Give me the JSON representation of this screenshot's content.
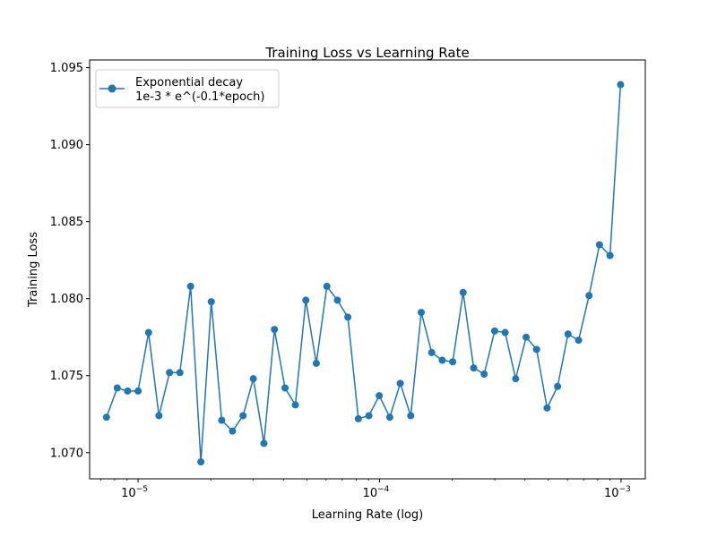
{
  "chart_data": {
    "type": "line",
    "title": "Training Loss vs Learning Rate",
    "xlabel": "Learning Rate (log)",
    "ylabel": "Training Loss",
    "x_scale": "log",
    "xlim": [
      6.3e-06,
      0.00126
    ],
    "ylim": [
      1.0683,
      1.0955
    ],
    "x_major_ticks": [
      {
        "value": 1e-05,
        "base": "10",
        "exp": "−5"
      },
      {
        "value": 0.0001,
        "base": "10",
        "exp": "−4"
      },
      {
        "value": 0.001,
        "base": "10",
        "exp": "−3"
      }
    ],
    "y_ticks": [
      {
        "value": 1.07,
        "label": "1.070"
      },
      {
        "value": 1.075,
        "label": "1.075"
      },
      {
        "value": 1.08,
        "label": "1.080"
      },
      {
        "value": 1.085,
        "label": "1.085"
      },
      {
        "value": 1.09,
        "label": "1.090"
      },
      {
        "value": 1.095,
        "label": "1.095"
      }
    ],
    "grid": false,
    "legend_position": "top-left",
    "series": [
      {
        "name": "Exponential decay\n1e-3 * e^(-0.1*epoch)",
        "color": "#1f77b4",
        "marker": "circle",
        "x": [
          7.4e-06,
          8.2e-06,
          9.05e-06,
          1e-05,
          1.105e-05,
          1.22e-05,
          1.35e-05,
          1.49e-05,
          1.65e-05,
          1.82e-05,
          2.01e-05,
          2.22e-05,
          2.46e-05,
          2.72e-05,
          3e-05,
          3.32e-05,
          3.67e-05,
          4.06e-05,
          4.48e-05,
          4.95e-05,
          5.47e-05,
          6.05e-05,
          6.69e-05,
          7.39e-05,
          8.17e-05,
          9.03e-05,
          9.97e-05,
          0.0001102,
          0.0001218,
          0.0001346,
          0.0001488,
          0.0001644,
          0.0001817,
          0.0002008,
          0.0002219,
          0.0002453,
          0.0002711,
          0.0002996,
          0.0003311,
          0.000366,
          0.0004045,
          0.000447,
          0.000494,
          0.000546,
          0.000603,
          0.000667,
          0.000737,
          0.000814,
          0.0009,
          0.000995
        ],
        "y": [
          1.0723,
          1.0742,
          1.074,
          1.074,
          1.0778,
          1.0724,
          1.0752,
          1.0752,
          1.0808,
          1.0694,
          1.0798,
          1.0721,
          1.0714,
          1.0724,
          1.0748,
          1.0706,
          1.078,
          1.0742,
          1.0731,
          1.0799,
          1.0758,
          1.0808,
          1.0799,
          1.0788,
          1.0722,
          1.0724,
          1.0737,
          1.0723,
          1.0745,
          1.0724,
          1.0791,
          1.0765,
          1.076,
          1.0759,
          1.0804,
          1.0755,
          1.0751,
          1.0779,
          1.0778,
          1.0748,
          1.0775,
          1.0767,
          1.0729,
          1.0743,
          1.0777,
          1.0773,
          1.0802,
          1.0835,
          1.0828,
          1.0939
        ]
      }
    ]
  }
}
